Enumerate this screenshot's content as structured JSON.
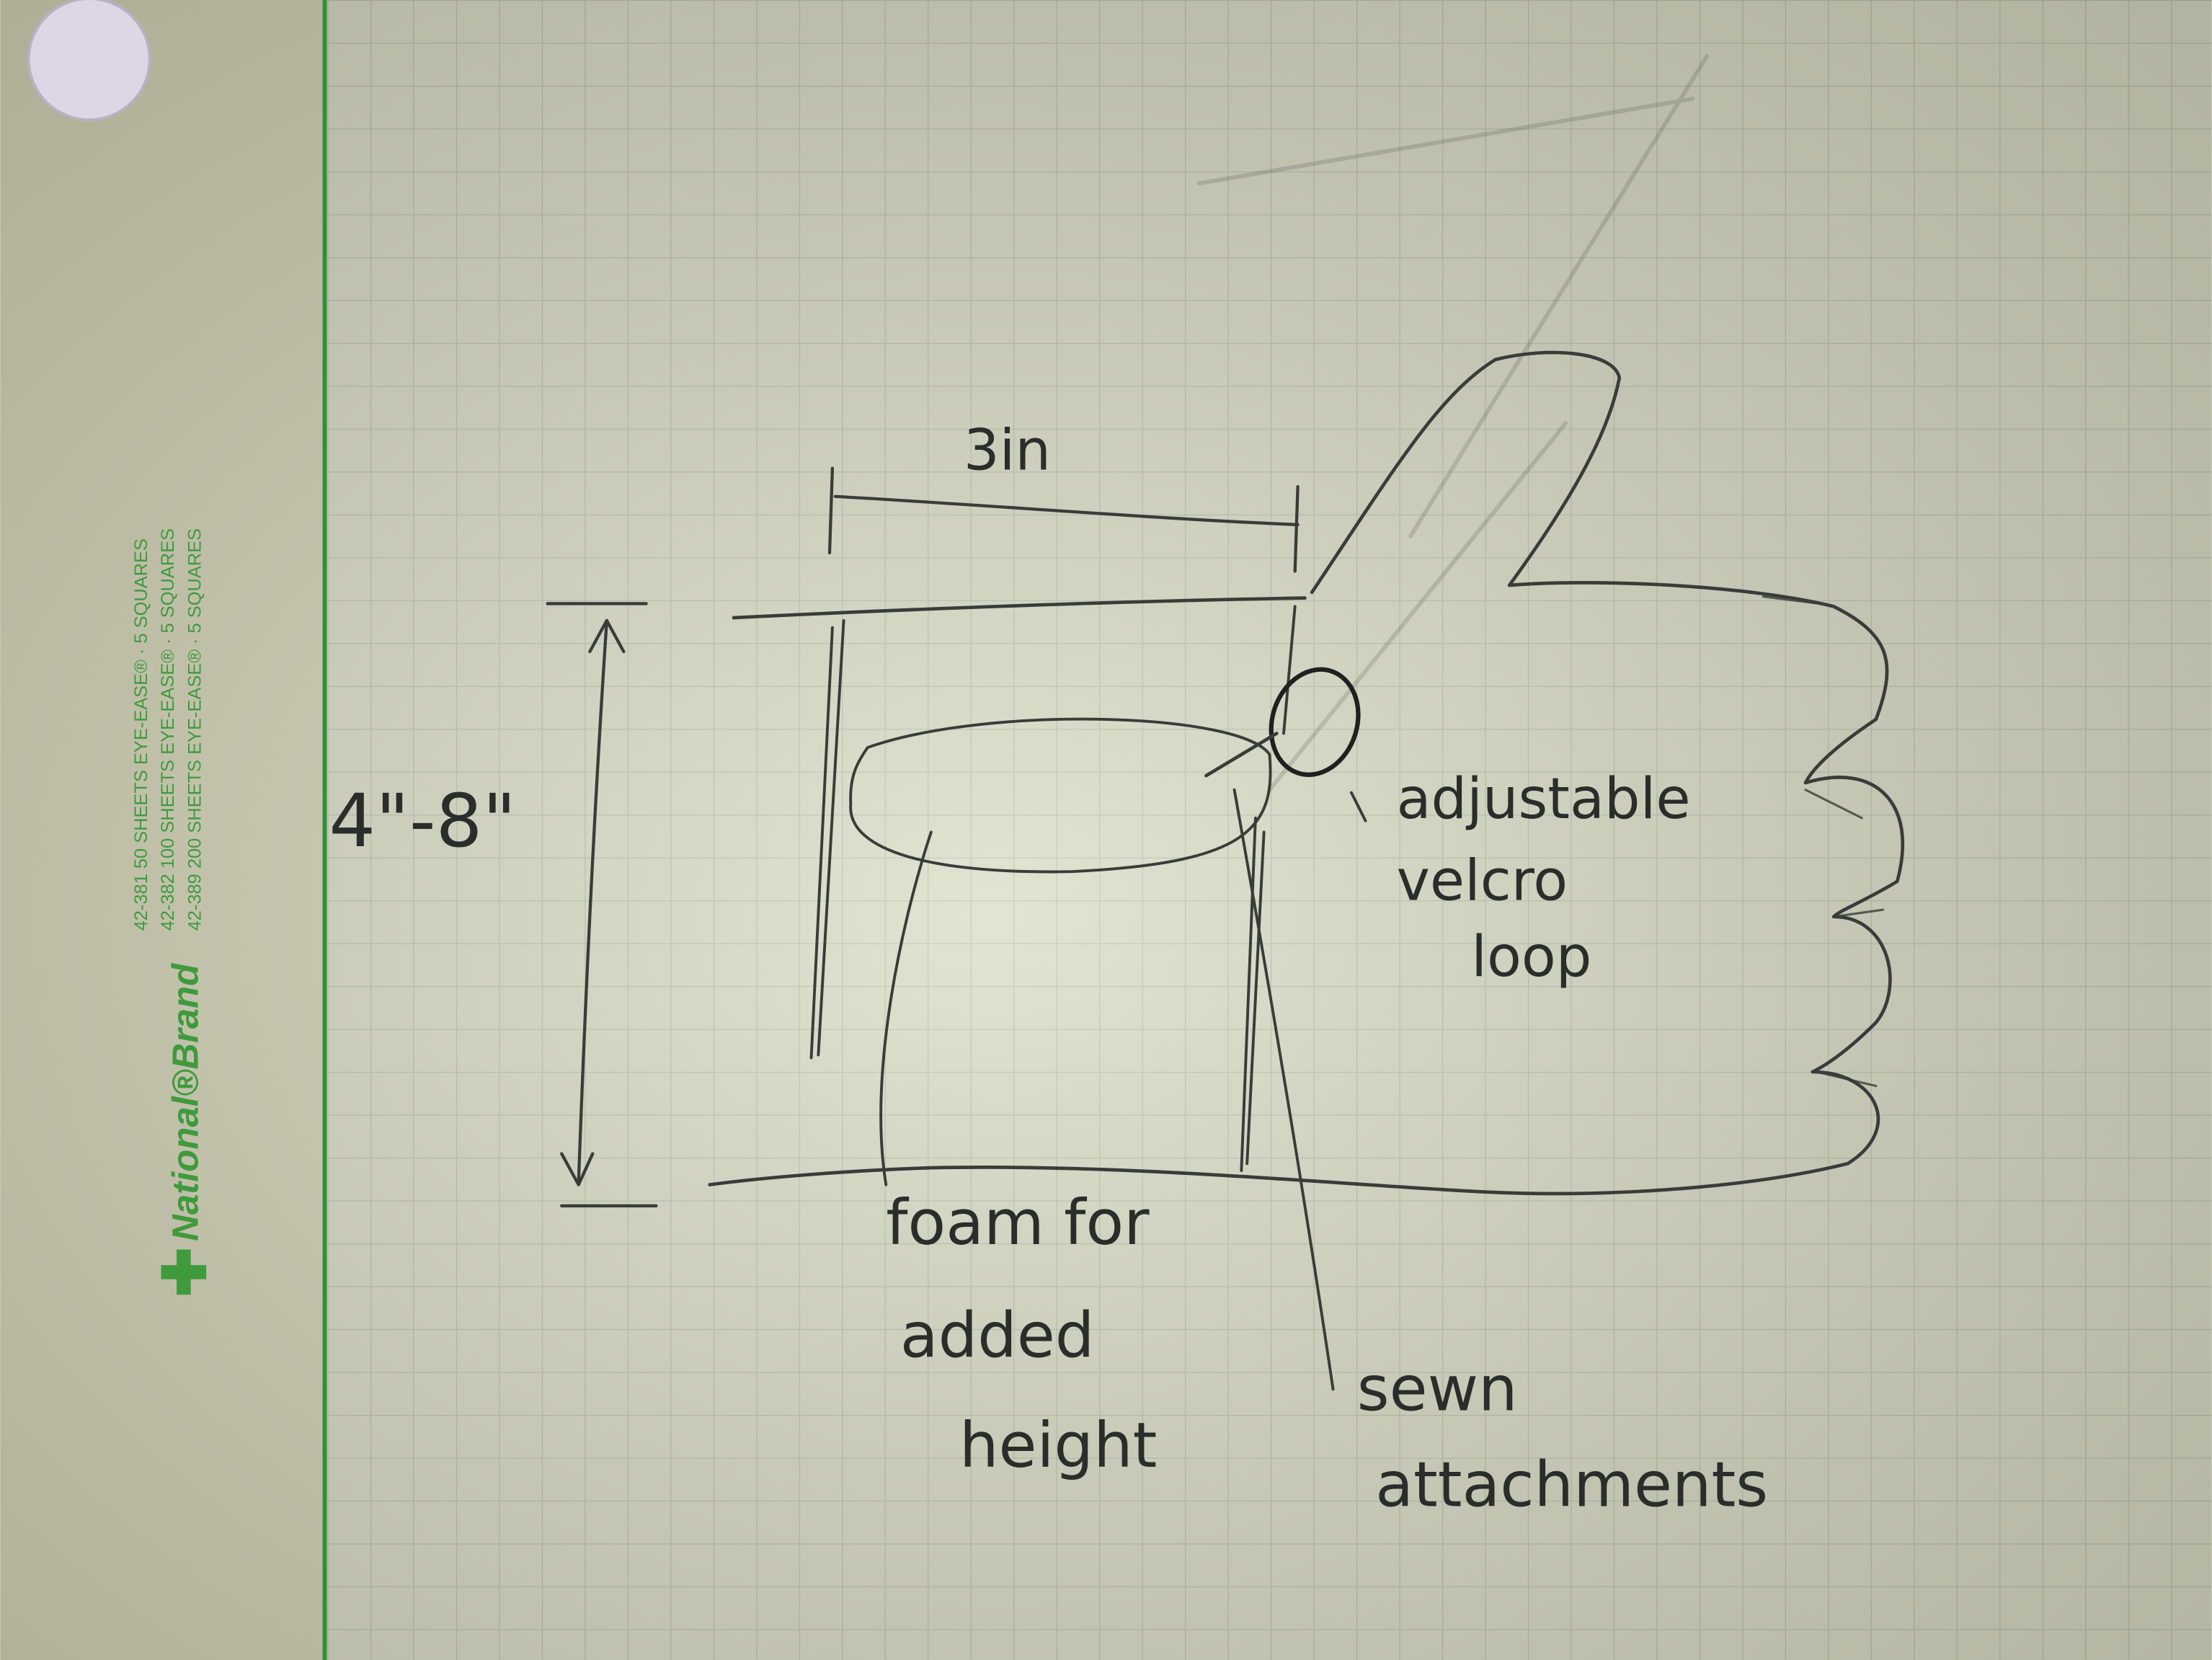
{
  "margin_print": {
    "lines": [
      "42-381   50 SHEETS EYE-EASE® · 5 SQUARES",
      "42-382  100 SHEETS EYE-EASE® · 5 SQUARES",
      "42-389  200 SHEETS EYE-EASE® · 5 SQUARES"
    ],
    "brand": "National®Brand"
  },
  "dimensions": {
    "width": "3in",
    "height": "4\"-8\""
  },
  "labels": {
    "loop_lines": [
      "adjustable",
      "velcro",
      "loop"
    ],
    "foam_lines": [
      "foam for",
      "added",
      "height"
    ],
    "sewn_lines": [
      "sewn",
      "attachments"
    ]
  },
  "colors": {
    "paper": "#d8dcc6",
    "grid": "#b9c0ad",
    "margin_line": "#2f8f3a",
    "pencil": "#2b2d2b",
    "brand_green": "#3f9a3c"
  }
}
